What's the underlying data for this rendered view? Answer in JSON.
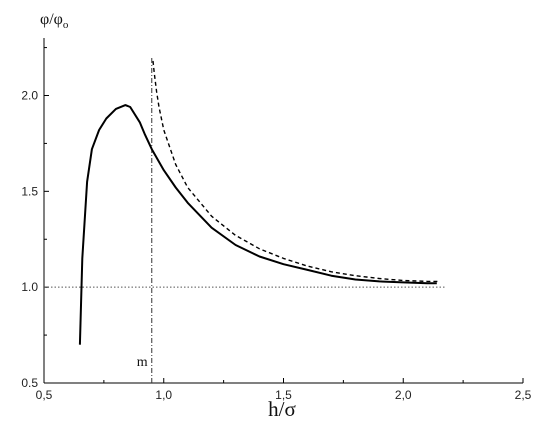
{
  "chart_data": {
    "type": "line",
    "xlabel": "h/σ",
    "ylabel": "φ/φo",
    "xlim": [
      0.5,
      2.5
    ],
    "ylim": [
      0.5,
      2.3
    ],
    "x_ticks": [
      0.5,
      1.0,
      1.5,
      2.0,
      2.5
    ],
    "x_tick_labels": [
      "0,5",
      "1,0",
      "1,5",
      "2,0",
      "2,5"
    ],
    "y_ticks": [
      0.5,
      1.0,
      1.5,
      2.0
    ],
    "y_tick_labels": [
      "0.5",
      "1.0",
      "1.5",
      "2.0"
    ],
    "grid": false,
    "series": [
      {
        "style": "solid",
        "color": "#000000",
        "x": [
          0.65,
          0.66,
          0.68,
          0.7,
          0.73,
          0.76,
          0.8,
          0.84,
          0.86,
          0.9,
          0.92,
          0.95,
          1.0,
          1.05,
          1.1,
          1.2,
          1.3,
          1.4,
          1.5,
          1.6,
          1.7,
          1.8,
          1.9,
          2.0,
          2.1,
          2.14
        ],
        "y": [
          0.7,
          1.15,
          1.55,
          1.72,
          1.82,
          1.88,
          1.93,
          1.95,
          1.94,
          1.86,
          1.8,
          1.72,
          1.61,
          1.52,
          1.44,
          1.31,
          1.22,
          1.16,
          1.12,
          1.09,
          1.06,
          1.04,
          1.03,
          1.025,
          1.02,
          1.02
        ]
      },
      {
        "style": "dashed",
        "color": "#000000",
        "x": [
          0.955,
          0.96,
          0.97,
          0.98,
          1.0,
          1.05,
          1.1,
          1.2,
          1.3,
          1.4,
          1.5,
          1.6,
          1.7,
          1.8,
          1.9,
          2.0,
          2.1,
          2.15
        ],
        "y": [
          2.18,
          2.12,
          2.02,
          1.94,
          1.82,
          1.64,
          1.52,
          1.37,
          1.27,
          1.2,
          1.15,
          1.11,
          1.08,
          1.06,
          1.045,
          1.035,
          1.03,
          1.03
        ]
      }
    ],
    "reference_lines": [
      {
        "orientation": "horizontal",
        "value": 1.0,
        "style": "dotted"
      },
      {
        "orientation": "vertical",
        "value": 0.95,
        "style": "dash-dot"
      }
    ],
    "annotations": [
      {
        "text": "m",
        "x": 0.91,
        "y": 0.59
      }
    ]
  }
}
